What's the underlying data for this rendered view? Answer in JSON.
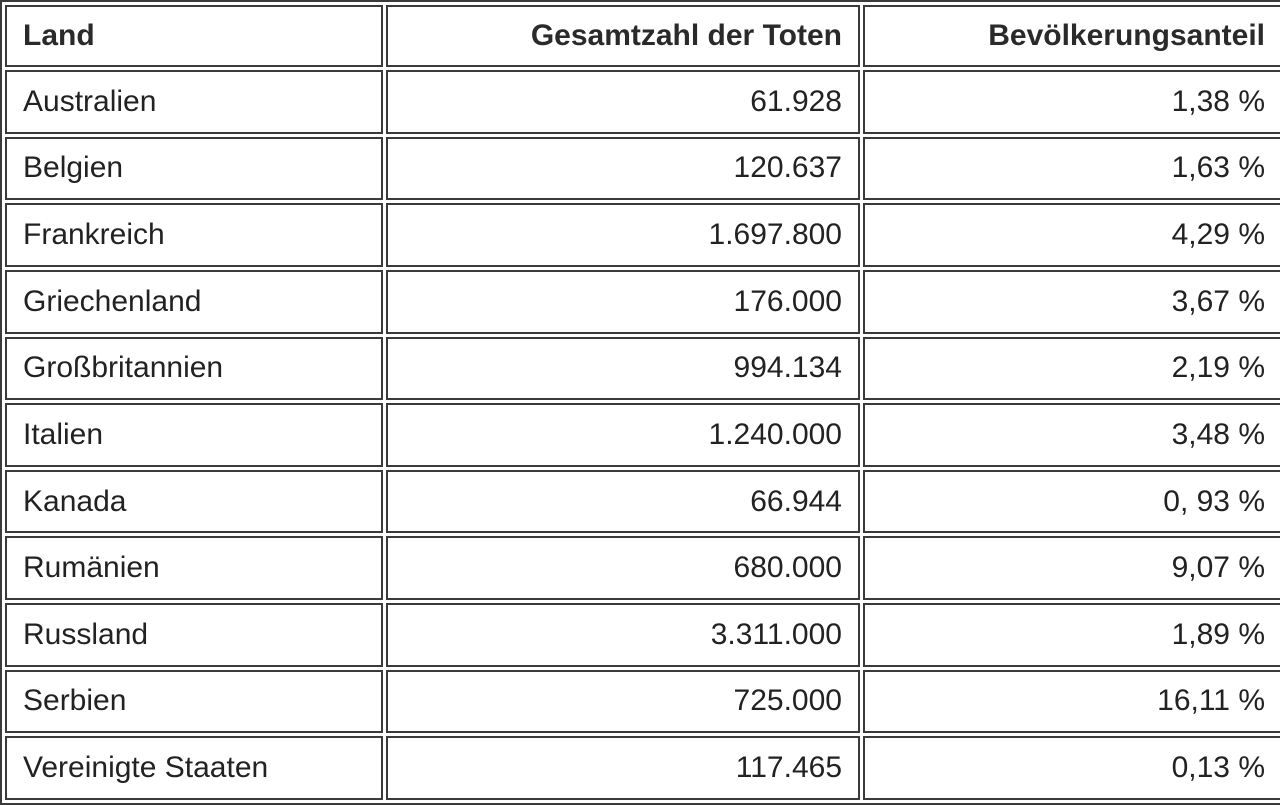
{
  "table": {
    "header": [
      "Land",
      "Gesamtzahl der Toten",
      "Bevölkerungsanteil"
    ],
    "rows": [
      [
        "Australien",
        "61.928",
        "1,38 %"
      ],
      [
        "Belgien",
        "120.637",
        "1,63 %"
      ],
      [
        "Frankreich",
        "1.697.800",
        "4,29 %"
      ],
      [
        "Griechenland",
        "176.000",
        "3,67 %"
      ],
      [
        "Großbritannien",
        "994.134",
        "2,19 %"
      ],
      [
        "Italien",
        "1.240.000",
        "3,48 %"
      ],
      [
        "Kanada",
        "66.944",
        "0, 93 %"
      ],
      [
        "Rumänien",
        "680.000",
        "9,07 %"
      ],
      [
        "Russland",
        "3.311.000",
        "1,89 %"
      ],
      [
        "Serbien",
        "725.000",
        "16,11 %"
      ],
      [
        "Vereinigte Staaten",
        "117.465",
        "0,13 %"
      ]
    ]
  }
}
